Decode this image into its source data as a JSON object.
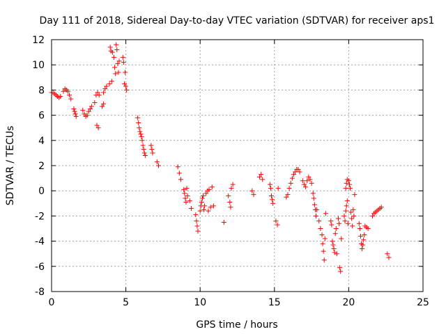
{
  "chart_data": {
    "type": "scatter",
    "title": "Day 111 of 2018, Sidereal Day-to-day VTEC variation (SDTVAR) for receiver aps1",
    "xlabel": "GPS time / hours",
    "ylabel": "SDTVAR / TECUs",
    "xlim": [
      0,
      25
    ],
    "ylim": [
      -8,
      12
    ],
    "xticks": [
      0,
      5,
      10,
      15,
      20,
      25
    ],
    "yticks": [
      -8,
      -6,
      -4,
      -2,
      0,
      2,
      4,
      6,
      8,
      10,
      12
    ],
    "grid": true,
    "marker": "+",
    "color": "#ff0000",
    "series": [
      {
        "name": "aps1",
        "points": [
          [
            0.0,
            7.8
          ],
          [
            0.1,
            7.8
          ],
          [
            0.2,
            7.7
          ],
          [
            0.3,
            7.6
          ],
          [
            0.4,
            7.5
          ],
          [
            0.5,
            7.4
          ],
          [
            0.6,
            7.5
          ],
          [
            0.8,
            7.9
          ],
          [
            0.9,
            8.1
          ],
          [
            1.0,
            8.0
          ],
          [
            1.1,
            7.9
          ],
          [
            1.2,
            7.6
          ],
          [
            1.3,
            7.3
          ],
          [
            1.5,
            6.5
          ],
          [
            1.55,
            6.3
          ],
          [
            1.6,
            6.1
          ],
          [
            1.65,
            5.9
          ],
          [
            2.1,
            6.4
          ],
          [
            2.2,
            6.1
          ],
          [
            2.3,
            5.9
          ],
          [
            2.4,
            6.0
          ],
          [
            2.5,
            6.3
          ],
          [
            2.6,
            6.5
          ],
          [
            2.7,
            6.7
          ],
          [
            2.9,
            7.0
          ],
          [
            3.05,
            5.2
          ],
          [
            3.15,
            5.0
          ],
          [
            3.0,
            7.6
          ],
          [
            3.1,
            7.8
          ],
          [
            3.2,
            7.6
          ],
          [
            3.4,
            6.7
          ],
          [
            3.5,
            6.9
          ],
          [
            3.5,
            7.8
          ],
          [
            3.6,
            8.1
          ],
          [
            3.7,
            8.3
          ],
          [
            3.9,
            8.5
          ],
          [
            3.95,
            11.4
          ],
          [
            4.0,
            11.1
          ],
          [
            4.05,
            8.7
          ],
          [
            4.1,
            11.0
          ],
          [
            4.2,
            10.6
          ],
          [
            4.25,
            9.8
          ],
          [
            4.3,
            9.3
          ],
          [
            4.35,
            11.6
          ],
          [
            4.4,
            11.2
          ],
          [
            4.45,
            10.1
          ],
          [
            4.5,
            9.4
          ],
          [
            4.55,
            10.3
          ],
          [
            4.8,
            10.6
          ],
          [
            4.85,
            10.2
          ],
          [
            4.9,
            8.5
          ],
          [
            4.95,
            9.4
          ],
          [
            5.0,
            8.3
          ],
          [
            5.05,
            8.0
          ],
          [
            5.8,
            5.8
          ],
          [
            5.85,
            5.4
          ],
          [
            5.9,
            5.0
          ],
          [
            5.95,
            4.7
          ],
          [
            6.0,
            4.5
          ],
          [
            6.05,
            4.3
          ],
          [
            6.1,
            4.0
          ],
          [
            6.15,
            3.6
          ],
          [
            6.2,
            3.3
          ],
          [
            6.25,
            3.0
          ],
          [
            6.3,
            2.8
          ],
          [
            6.7,
            3.6
          ],
          [
            6.75,
            3.3
          ],
          [
            6.8,
            3.0
          ],
          [
            7.1,
            2.3
          ],
          [
            7.2,
            2.0
          ],
          [
            8.5,
            1.9
          ],
          [
            8.6,
            1.4
          ],
          [
            8.7,
            0.9
          ],
          [
            8.9,
            0.1
          ],
          [
            8.95,
            -0.2
          ],
          [
            9.0,
            -0.6
          ],
          [
            9.05,
            -0.9
          ],
          [
            9.1,
            0.2
          ],
          [
            9.15,
            -0.4
          ],
          [
            9.3,
            -0.8
          ],
          [
            9.4,
            -1.4
          ],
          [
            9.7,
            -1.9
          ],
          [
            9.75,
            -2.4
          ],
          [
            9.8,
            -2.8
          ],
          [
            9.85,
            -3.2
          ],
          [
            10.0,
            -1.6
          ],
          [
            10.05,
            -1.2
          ],
          [
            10.1,
            -0.9
          ],
          [
            10.15,
            -0.6
          ],
          [
            10.2,
            -0.4
          ],
          [
            10.25,
            -1.5
          ],
          [
            10.3,
            -1.2
          ],
          [
            10.4,
            -0.2
          ],
          [
            10.5,
            0.0
          ],
          [
            10.55,
            -1.6
          ],
          [
            10.6,
            0.1
          ],
          [
            10.7,
            -1.3
          ],
          [
            10.8,
            0.3
          ],
          [
            10.9,
            -1.2
          ],
          [
            11.6,
            -2.5
          ],
          [
            11.9,
            -0.4
          ],
          [
            12.0,
            -0.9
          ],
          [
            12.05,
            -1.3
          ],
          [
            12.1,
            0.2
          ],
          [
            12.2,
            0.5
          ],
          [
            13.5,
            0.0
          ],
          [
            13.6,
            -0.3
          ],
          [
            14.0,
            1.1
          ],
          [
            14.1,
            1.3
          ],
          [
            14.2,
            0.9
          ],
          [
            14.7,
            0.5
          ],
          [
            14.75,
            0.2
          ],
          [
            14.8,
            -0.4
          ],
          [
            14.85,
            -0.7
          ],
          [
            14.9,
            -1.0
          ],
          [
            15.1,
            -2.4
          ],
          [
            15.2,
            -2.7
          ],
          [
            15.25,
            0.2
          ],
          [
            15.8,
            -0.5
          ],
          [
            15.9,
            -0.3
          ],
          [
            16.0,
            0.2
          ],
          [
            16.1,
            0.6
          ],
          [
            16.2,
            1.0
          ],
          [
            16.3,
            1.3
          ],
          [
            16.4,
            1.5
          ],
          [
            16.5,
            1.7
          ],
          [
            16.6,
            1.7
          ],
          [
            16.7,
            1.5
          ],
          [
            16.9,
            0.8
          ],
          [
            17.0,
            0.5
          ],
          [
            17.1,
            0.3
          ],
          [
            17.2,
            0.8
          ],
          [
            17.3,
            1.1
          ],
          [
            17.4,
            0.9
          ],
          [
            17.5,
            0.6
          ],
          [
            17.6,
            -0.2
          ],
          [
            17.65,
            -0.6
          ],
          [
            17.7,
            -1.1
          ],
          [
            17.75,
            -1.5
          ],
          [
            17.8,
            -2.0
          ],
          [
            17.85,
            -1.5
          ],
          [
            18.0,
            -2.4
          ],
          [
            18.1,
            -3.0
          ],
          [
            18.2,
            -3.5
          ],
          [
            18.25,
            -4.2
          ],
          [
            18.3,
            -4.8
          ],
          [
            18.35,
            -5.5
          ],
          [
            18.4,
            -3.8
          ],
          [
            18.45,
            -1.8
          ],
          [
            18.8,
            -2.4
          ],
          [
            18.85,
            -2.7
          ],
          [
            18.9,
            -4.0
          ],
          [
            18.95,
            -4.3
          ],
          [
            19.0,
            -4.6
          ],
          [
            19.05,
            -4.9
          ],
          [
            19.1,
            -3.4
          ],
          [
            19.15,
            -3.0
          ],
          [
            19.2,
            -5.0
          ],
          [
            19.3,
            -2.2
          ],
          [
            19.35,
            -2.6
          ],
          [
            19.4,
            -6.1
          ],
          [
            19.45,
            -6.4
          ],
          [
            19.5,
            -3.8
          ],
          [
            19.7,
            -2.0
          ],
          [
            19.75,
            -2.4
          ],
          [
            19.8,
            -1.6
          ],
          [
            19.85,
            -1.2
          ],
          [
            19.9,
            -0.8
          ],
          [
            19.95,
            -2.6
          ],
          [
            20.0,
            0.8
          ],
          [
            20.05,
            0.5
          ],
          [
            20.1,
            0.2
          ],
          [
            20.15,
            -1.7
          ],
          [
            20.2,
            -2.2
          ],
          [
            20.25,
            -2.8
          ],
          [
            20.3,
            -1.5
          ],
          [
            20.35,
            -2.0
          ],
          [
            19.8,
            0.2
          ],
          [
            19.85,
            0.6
          ],
          [
            19.9,
            0.9
          ],
          [
            20.4,
            -0.3
          ],
          [
            20.7,
            -2.6
          ],
          [
            20.75,
            -3.0
          ],
          [
            20.8,
            -3.6
          ],
          [
            20.85,
            -4.2
          ],
          [
            20.9,
            -4.6
          ],
          [
            20.95,
            -4.3
          ],
          [
            21.0,
            -3.9
          ],
          [
            21.05,
            -3.5
          ],
          [
            21.1,
            -2.8
          ],
          [
            21.2,
            -2.9
          ],
          [
            21.3,
            -3.0
          ],
          [
            21.6,
            -2.0
          ],
          [
            21.7,
            -1.8
          ],
          [
            21.8,
            -1.7
          ],
          [
            21.9,
            -1.6
          ],
          [
            22.0,
            -1.5
          ],
          [
            22.1,
            -1.4
          ],
          [
            22.2,
            -1.3
          ],
          [
            22.6,
            -5.0
          ],
          [
            22.7,
            -5.3
          ]
        ]
      }
    ]
  }
}
